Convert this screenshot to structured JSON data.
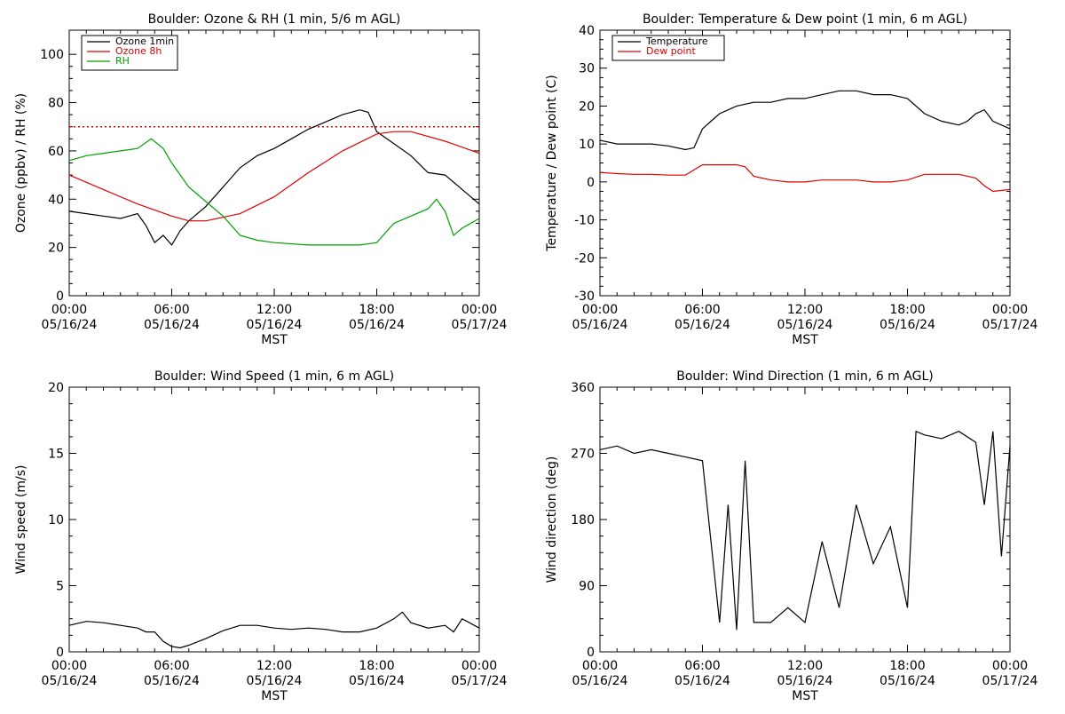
{
  "chart_data": [
    {
      "id": "ozone_rh",
      "type": "line",
      "title": "Boulder: Ozone & RH (1 min, 5/6 m AGL)",
      "xlabel": "MST",
      "ylabel": "Ozone (ppbv) / RH (%)",
      "x_ticks": [
        "00:00",
        "06:00",
        "12:00",
        "18:00",
        "00:00"
      ],
      "x_tick_dates": [
        "05/16/24",
        "05/16/24",
        "05/16/24",
        "05/16/24",
        "05/17/24"
      ],
      "xlim": [
        0,
        24
      ],
      "ylim": [
        0,
        110
      ],
      "y_ticks": [
        0,
        20,
        40,
        60,
        80,
        100
      ],
      "grid": false,
      "legend_position": "top-left",
      "reference_line": {
        "value": 70,
        "style": "dotted",
        "color": "#e00000"
      },
      "series": [
        {
          "name": "Ozone 1min",
          "color": "#000000",
          "x": [
            0,
            1,
            2,
            3,
            4,
            4.5,
            5,
            5.5,
            6,
            6.5,
            7,
            8,
            9,
            10,
            11,
            12,
            13,
            14,
            15,
            16,
            17,
            17.5,
            18,
            19,
            20,
            21,
            22,
            23,
            24
          ],
          "y": [
            35,
            34,
            33,
            32,
            34,
            29,
            22,
            25,
            21,
            27,
            31,
            37,
            45,
            53,
            58,
            61,
            65,
            69,
            72,
            75,
            77,
            76,
            68,
            63,
            58,
            51,
            50,
            44,
            38
          ]
        },
        {
          "name": "Ozone 8h",
          "color": "#e00000",
          "x": [
            0,
            2,
            4,
            6,
            7,
            8,
            10,
            12,
            14,
            16,
            18,
            19,
            20,
            22,
            24
          ],
          "y": [
            50,
            44,
            38,
            33,
            31,
            31,
            34,
            41,
            51,
            60,
            67,
            68,
            68,
            64,
            59
          ]
        },
        {
          "name": "RH",
          "color": "#00a000",
          "x": [
            0,
            1,
            2,
            3,
            4,
            4.8,
            5.5,
            6,
            7,
            8,
            9,
            10,
            11,
            12,
            14,
            16,
            17,
            18,
            19,
            20,
            21,
            21.5,
            22,
            22.5,
            23,
            24
          ],
          "y": [
            56,
            58,
            59,
            60,
            61,
            65,
            61,
            55,
            45,
            39,
            33,
            25,
            23,
            22,
            21,
            21,
            21,
            22,
            30,
            33,
            36,
            40,
            35,
            25,
            28,
            32
          ]
        }
      ]
    },
    {
      "id": "temp_dew",
      "type": "line",
      "title": "Boulder: Temperature & Dew point (1 min, 6 m AGL)",
      "xlabel": "MST",
      "ylabel": "Temperature / Dew point (C)",
      "x_ticks": [
        "00:00",
        "06:00",
        "12:00",
        "18:00",
        "00:00"
      ],
      "x_tick_dates": [
        "05/16/24",
        "05/16/24",
        "05/16/24",
        "05/16/24",
        "05/17/24"
      ],
      "xlim": [
        0,
        24
      ],
      "ylim": [
        -30,
        40
      ],
      "y_ticks": [
        -30,
        -20,
        -10,
        0,
        10,
        20,
        30,
        40
      ],
      "grid": false,
      "legend_position": "top-left",
      "series": [
        {
          "name": "Temperature",
          "color": "#000000",
          "x": [
            0,
            1,
            2,
            3,
            4,
            5,
            5.5,
            6,
            6.5,
            7,
            8,
            9,
            10,
            11,
            12,
            13,
            14,
            15,
            16,
            17,
            18,
            19,
            20,
            21,
            21.5,
            22,
            22.5,
            23,
            24
          ],
          "y": [
            11,
            10,
            10,
            10,
            9.5,
            8.5,
            9,
            14,
            16,
            18,
            20,
            21,
            21,
            22,
            22,
            23,
            24,
            24,
            23,
            23,
            22,
            18,
            16,
            15,
            16,
            18,
            19,
            16,
            14
          ]
        },
        {
          "name": "Dew point",
          "color": "#e00000",
          "x": [
            0,
            1,
            2,
            3,
            4,
            5,
            6,
            7,
            8,
            8.5,
            9,
            10,
            11,
            12,
            13,
            14,
            15,
            16,
            17,
            18,
            19,
            20,
            21,
            22,
            22.5,
            23,
            24
          ],
          "y": [
            2.5,
            2.2,
            2,
            2,
            1.8,
            1.8,
            4.5,
            4.5,
            4.5,
            4,
            1.5,
            0.5,
            0,
            0,
            0.5,
            0.5,
            0.5,
            0,
            0,
            0.5,
            2,
            2,
            2,
            1,
            -1,
            -2.5,
            -2
          ]
        }
      ]
    },
    {
      "id": "wind_speed",
      "type": "line",
      "title": "Boulder: Wind Speed (1 min, 6 m AGL)",
      "xlabel": "MST",
      "ylabel": "Wind speed (m/s)",
      "x_ticks": [
        "00:00",
        "06:00",
        "12:00",
        "18:00",
        "00:00"
      ],
      "x_tick_dates": [
        "05/16/24",
        "05/16/24",
        "05/16/24",
        "05/16/24",
        "05/17/24"
      ],
      "xlim": [
        0,
        24
      ],
      "ylim": [
        0,
        20
      ],
      "y_ticks": [
        0,
        5,
        10,
        15,
        20
      ],
      "grid": false,
      "series": [
        {
          "color": "#000000",
          "x": [
            0,
            1,
            2,
            3,
            4,
            4.5,
            5,
            5.5,
            6,
            6.5,
            7,
            8,
            9,
            10,
            11,
            12,
            13,
            14,
            15,
            16,
            17,
            18,
            19,
            19.5,
            20,
            21,
            22,
            22.5,
            23,
            24
          ],
          "y": [
            2,
            2.3,
            2.2,
            2,
            1.8,
            1.5,
            1.5,
            0.8,
            0.4,
            0.3,
            0.5,
            1,
            1.6,
            2,
            2,
            1.8,
            1.7,
            1.8,
            1.7,
            1.5,
            1.5,
            1.8,
            2.5,
            3,
            2.2,
            1.8,
            2,
            1.5,
            2.5,
            1.8
          ]
        }
      ]
    },
    {
      "id": "wind_dir",
      "type": "line",
      "title": "Boulder: Wind Direction (1 min, 6 m AGL)",
      "xlabel": "MST",
      "ylabel": "Wind direction (deg)",
      "x_ticks": [
        "00:00",
        "06:00",
        "12:00",
        "18:00",
        "00:00"
      ],
      "x_tick_dates": [
        "05/16/24",
        "05/16/24",
        "05/16/24",
        "05/16/24",
        "05/17/24"
      ],
      "xlim": [
        0,
        24
      ],
      "ylim": [
        0,
        360
      ],
      "y_ticks": [
        0,
        90,
        180,
        270,
        360
      ],
      "grid": false,
      "series": [
        {
          "color": "#000000",
          "x": [
            0,
            1,
            2,
            3,
            4,
            5,
            6,
            6.5,
            7,
            7.5,
            8,
            8.5,
            9,
            10,
            11,
            12,
            13,
            14,
            15,
            16,
            17,
            18,
            18.5,
            19,
            20,
            21,
            22,
            22.5,
            23,
            23.5,
            24
          ],
          "y": [
            275,
            280,
            270,
            275,
            270,
            265,
            260,
            150,
            40,
            200,
            30,
            260,
            40,
            40,
            60,
            40,
            150,
            60,
            200,
            120,
            170,
            60,
            300,
            295,
            290,
            300,
            285,
            200,
            300,
            130,
            280
          ]
        }
      ]
    }
  ]
}
